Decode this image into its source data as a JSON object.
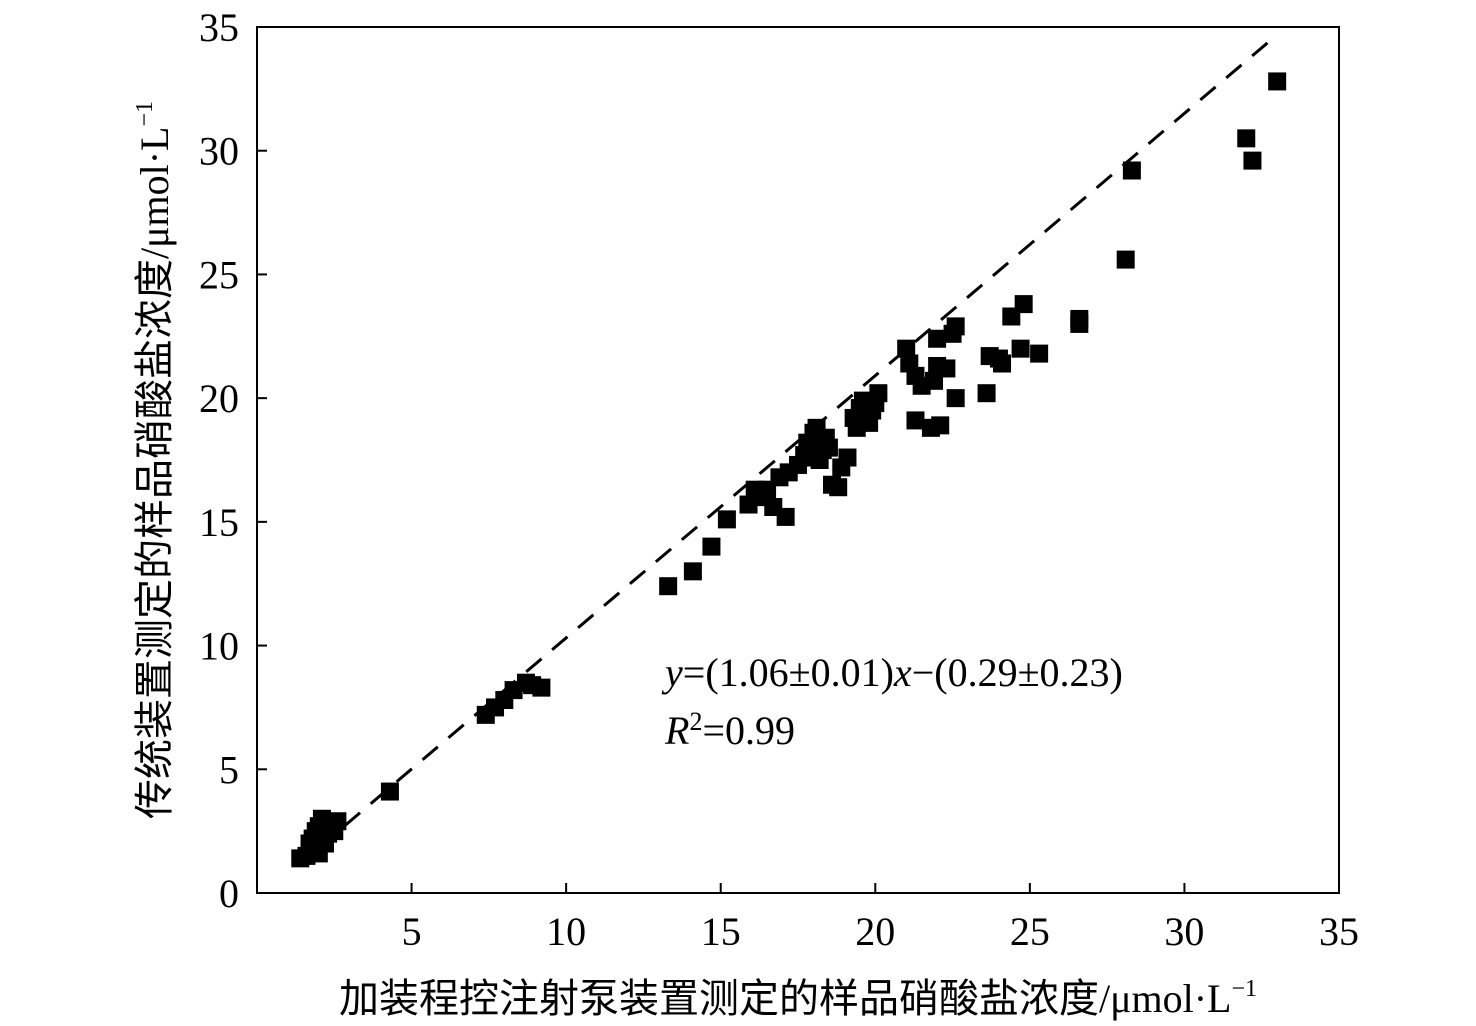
{
  "chart_data": {
    "type": "scatter",
    "xlabel": "加装程控注射泵装置测定的样品硝酸盐浓度/μmol·L",
    "xlabel_sup": "−1",
    "ylabel": "传统装置测定的样品硝酸盐浓度/μmol·L",
    "ylabel_sup": "−1",
    "xlim": [
      0,
      35
    ],
    "ylim": [
      0,
      35
    ],
    "xticks": [
      5,
      10,
      15,
      20,
      25,
      30,
      35
    ],
    "yticks": [
      0,
      5,
      10,
      15,
      20,
      25,
      30,
      35
    ],
    "grid": false,
    "marker": "square",
    "marker_color": "#000000",
    "fit_line": {
      "slope": 1.06,
      "intercept": -0.29,
      "x_range": [
        2,
        33
      ],
      "style": "dashed",
      "equation": {
        "y_var": "y",
        "middle": "=(1.06±0.01)",
        "x_var": "x",
        "rest": "−(0.29±0.23)"
      },
      "r2": {
        "symbol": "R",
        "sup": "2",
        "value": "=0.99"
      }
    },
    "points": [
      {
        "x": 1.4,
        "y": 1.4
      },
      {
        "x": 1.6,
        "y": 1.5
      },
      {
        "x": 1.8,
        "y": 1.7
      },
      {
        "x": 2.0,
        "y": 1.6
      },
      {
        "x": 1.7,
        "y": 2.0
      },
      {
        "x": 1.8,
        "y": 2.2
      },
      {
        "x": 1.9,
        "y": 2.5
      },
      {
        "x": 2.0,
        "y": 2.7
      },
      {
        "x": 2.1,
        "y": 3.0
      },
      {
        "x": 2.2,
        "y": 2.8
      },
      {
        "x": 2.3,
        "y": 2.4
      },
      {
        "x": 2.5,
        "y": 2.5
      },
      {
        "x": 2.6,
        "y": 2.9
      },
      {
        "x": 2.0,
        "y": 2.2
      },
      {
        "x": 2.2,
        "y": 2.0
      },
      {
        "x": 4.3,
        "y": 4.1
      },
      {
        "x": 7.4,
        "y": 7.2
      },
      {
        "x": 7.7,
        "y": 7.5
      },
      {
        "x": 8.0,
        "y": 7.8
      },
      {
        "x": 8.3,
        "y": 8.2
      },
      {
        "x": 8.7,
        "y": 8.5
      },
      {
        "x": 9.2,
        "y": 8.3
      },
      {
        "x": 8.9,
        "y": 8.4
      },
      {
        "x": 13.3,
        "y": 12.4
      },
      {
        "x": 14.1,
        "y": 13.0
      },
      {
        "x": 14.7,
        "y": 14.0
      },
      {
        "x": 15.2,
        "y": 15.1
      },
      {
        "x": 15.9,
        "y": 15.7
      },
      {
        "x": 16.1,
        "y": 16.3
      },
      {
        "x": 16.4,
        "y": 16.0
      },
      {
        "x": 16.7,
        "y": 15.6
      },
      {
        "x": 16.5,
        "y": 16.3
      },
      {
        "x": 17.1,
        "y": 15.2
      },
      {
        "x": 16.9,
        "y": 16.8
      },
      {
        "x": 17.2,
        "y": 17.0
      },
      {
        "x": 17.5,
        "y": 17.3
      },
      {
        "x": 17.7,
        "y": 17.7
      },
      {
        "x": 17.8,
        "y": 18.2
      },
      {
        "x": 18.0,
        "y": 18.6
      },
      {
        "x": 18.1,
        "y": 18.8
      },
      {
        "x": 18.2,
        "y": 17.5
      },
      {
        "x": 18.4,
        "y": 18.4
      },
      {
        "x": 18.5,
        "y": 18.0
      },
      {
        "x": 18.6,
        "y": 16.5
      },
      {
        "x": 18.8,
        "y": 16.4
      },
      {
        "x": 18.9,
        "y": 17.2
      },
      {
        "x": 19.1,
        "y": 17.6
      },
      {
        "x": 19.3,
        "y": 19.2
      },
      {
        "x": 19.4,
        "y": 18.8
      },
      {
        "x": 19.5,
        "y": 19.6
      },
      {
        "x": 19.6,
        "y": 19.9
      },
      {
        "x": 19.8,
        "y": 19.0
      },
      {
        "x": 19.9,
        "y": 19.5
      },
      {
        "x": 20.0,
        "y": 19.8
      },
      {
        "x": 20.1,
        "y": 20.2
      },
      {
        "x": 18.3,
        "y": 17.9
      },
      {
        "x": 17.9,
        "y": 17.6
      },
      {
        "x": 21.0,
        "y": 22.0
      },
      {
        "x": 21.1,
        "y": 21.4
      },
      {
        "x": 21.3,
        "y": 20.9
      },
      {
        "x": 21.3,
        "y": 19.1
      },
      {
        "x": 21.5,
        "y": 20.5
      },
      {
        "x": 21.8,
        "y": 18.8
      },
      {
        "x": 21.9,
        "y": 20.7
      },
      {
        "x": 22.0,
        "y": 21.3
      },
      {
        "x": 22.0,
        "y": 22.4
      },
      {
        "x": 22.1,
        "y": 18.9
      },
      {
        "x": 22.3,
        "y": 21.2
      },
      {
        "x": 22.5,
        "y": 22.6
      },
      {
        "x": 22.6,
        "y": 22.9
      },
      {
        "x": 22.6,
        "y": 20.0
      },
      {
        "x": 23.6,
        "y": 20.2
      },
      {
        "x": 23.7,
        "y": 21.7
      },
      {
        "x": 24.0,
        "y": 21.6
      },
      {
        "x": 24.1,
        "y": 21.4
      },
      {
        "x": 24.4,
        "y": 23.3
      },
      {
        "x": 24.7,
        "y": 22.0
      },
      {
        "x": 24.8,
        "y": 23.8
      },
      {
        "x": 25.3,
        "y": 21.8
      },
      {
        "x": 26.6,
        "y": 23.0
      },
      {
        "x": 26.6,
        "y": 23.2
      },
      {
        "x": 28.1,
        "y": 25.6
      },
      {
        "x": 28.3,
        "y": 29.2
      },
      {
        "x": 32.0,
        "y": 30.5
      },
      {
        "x": 32.2,
        "y": 29.6
      },
      {
        "x": 33.0,
        "y": 32.8
      }
    ]
  }
}
